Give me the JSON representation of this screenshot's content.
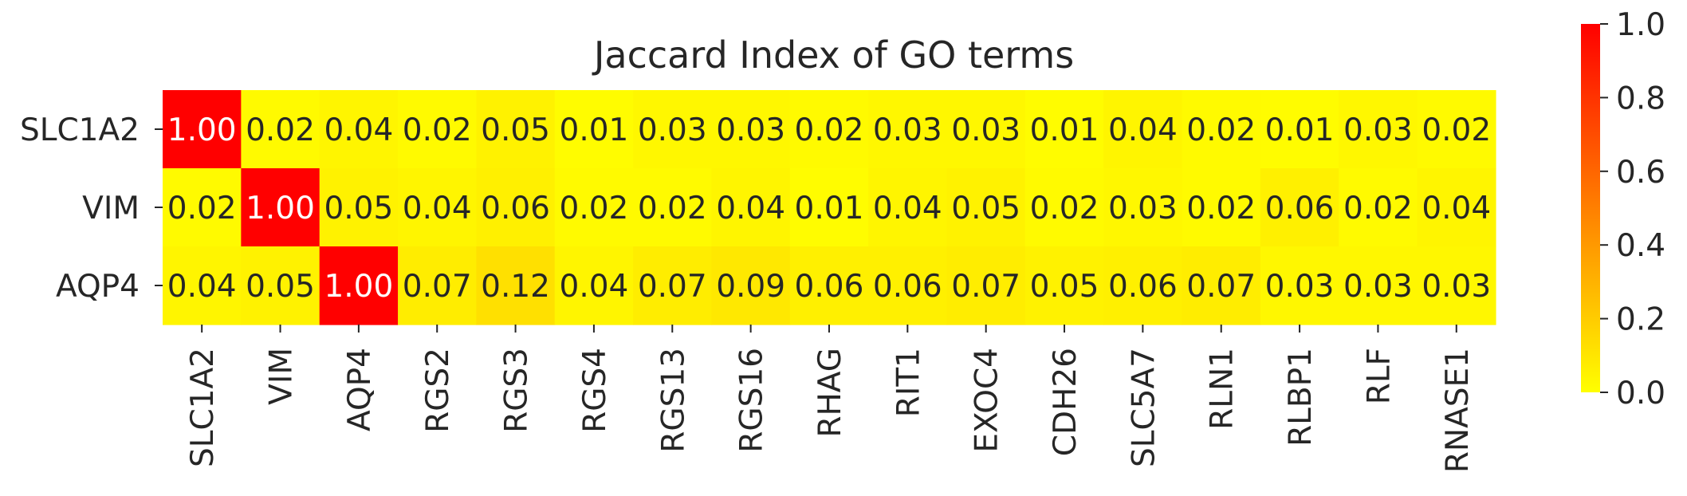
{
  "chart_data": {
    "type": "heatmap",
    "title": "Jaccard Index of GO terms",
    "xlabel": "",
    "ylabel": "",
    "rows": [
      "SLC1A2",
      "VIM",
      "AQP4"
    ],
    "columns": [
      "SLC1A2",
      "VIM",
      "AQP4",
      "RGS2",
      "RGS3",
      "RGS4",
      "RGS13",
      "RGS16",
      "RHAG",
      "RIT1",
      "EXOC4",
      "CDH26",
      "SLC5A7",
      "RLN1",
      "RLBP1",
      "RLF",
      "RNASE1"
    ],
    "values": [
      [
        1.0,
        0.02,
        0.04,
        0.02,
        0.05,
        0.01,
        0.03,
        0.03,
        0.02,
        0.03,
        0.03,
        0.01,
        0.04,
        0.02,
        0.01,
        0.03,
        0.02
      ],
      [
        0.02,
        1.0,
        0.05,
        0.04,
        0.06,
        0.02,
        0.02,
        0.04,
        0.01,
        0.04,
        0.05,
        0.02,
        0.03,
        0.02,
        0.06,
        0.02,
        0.04
      ],
      [
        0.04,
        0.05,
        1.0,
        0.07,
        0.12,
        0.04,
        0.07,
        0.09,
        0.06,
        0.06,
        0.07,
        0.05,
        0.06,
        0.07,
        0.03,
        0.03,
        0.03
      ]
    ],
    "annotations": [
      [
        "1.00",
        "0.02",
        "0.04",
        "0.02",
        "0.05",
        "0.01",
        "0.03",
        "0.03",
        "0.02",
        "0.03",
        "0.03",
        "0.01",
        "0.04",
        "0.02",
        "0.01",
        "0.03",
        "0.02"
      ],
      [
        "0.02",
        "1.00",
        "0.05",
        "0.04",
        "0.06",
        "0.02",
        "0.02",
        "0.04",
        "0.01",
        "0.04",
        "0.05",
        "0.02",
        "0.03",
        "0.02",
        "0.06",
        "0.02",
        "0.04"
      ],
      [
        "0.04",
        "0.05",
        "1.00",
        "0.07",
        "0.12",
        "0.04",
        "0.07",
        "0.09",
        "0.06",
        "0.06",
        "0.07",
        "0.05",
        "0.06",
        "0.07",
        "0.03",
        "0.03",
        "0.03"
      ]
    ],
    "colormap": "autumn_r",
    "vmin": 0,
    "vmax": 1,
    "colorbar": {
      "ticks": [
        0.0,
        0.2,
        0.4,
        0.6,
        0.8,
        1.0
      ],
      "tick_labels": [
        "0.0",
        "0.2",
        "0.4",
        "0.6",
        "0.8",
        "1.0"
      ],
      "placement": "right"
    },
    "colors": {
      "low": "#ffff00",
      "high": "#ff0000",
      "text_dark": "#262626",
      "text_light": "#ffffff"
    },
    "grid": false
  }
}
